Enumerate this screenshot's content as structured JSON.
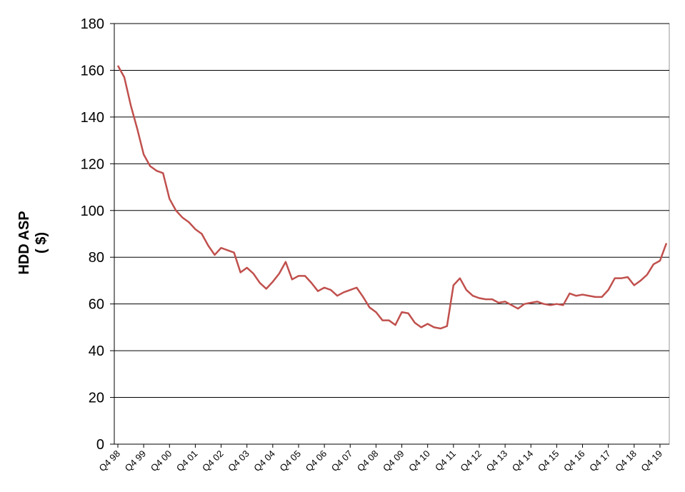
{
  "chart_data": {
    "type": "line",
    "y_label": [
      "HDD ASP",
      "( $)"
    ],
    "categories": [
      "Q4 98",
      null,
      null,
      null,
      "Q4 99",
      null,
      null,
      null,
      "Q4 00",
      null,
      null,
      null,
      "Q4 01",
      null,
      null,
      null,
      "Q4 02",
      null,
      null,
      null,
      "Q4 03",
      null,
      null,
      null,
      "Q4 04",
      null,
      null,
      null,
      "Q4 05",
      null,
      null,
      null,
      "Q4 06",
      null,
      null,
      null,
      "Q4 07",
      null,
      null,
      null,
      "Q4 08",
      null,
      null,
      null,
      "Q4 09",
      null,
      null,
      null,
      "Q4 10",
      null,
      null,
      null,
      "Q4 11",
      null,
      null,
      null,
      "Q4 12",
      null,
      null,
      null,
      "Q4 13",
      null,
      null,
      null,
      "Q4 14",
      null,
      null,
      null,
      "Q4 15",
      null,
      null,
      null,
      "Q4 16",
      null,
      null,
      null,
      "Q4 17",
      null,
      null,
      null,
      "Q4 18",
      null,
      null,
      null,
      "Q4 19",
      null
    ],
    "values": [
      162,
      157,
      145,
      135,
      124,
      119,
      117,
      116,
      105,
      100,
      97,
      95,
      92,
      90,
      85,
      81,
      84,
      83,
      82,
      73.5,
      75.5,
      73,
      69,
      66.5,
      69.5,
      73,
      78,
      70.5,
      72,
      72,
      69,
      65.5,
      67,
      66,
      63.5,
      65,
      66,
      67,
      63,
      58.5,
      56.5,
      53,
      53,
      51,
      56.5,
      56,
      52,
      50,
      51.5,
      50,
      49.5,
      50.5,
      68,
      71,
      66,
      63.5,
      62.5,
      62,
      62,
      60.5,
      61,
      59.5,
      58,
      60,
      60.5,
      61,
      60,
      59.5,
      60,
      59.5,
      64.5,
      63.5,
      64,
      63.5,
      63,
      63,
      66,
      71,
      71,
      71.5,
      68,
      70,
      72.5,
      77,
      78.5,
      86
    ],
    "color": "#c0504d",
    "ylim": [
      0,
      180
    ],
    "yticks": [
      0,
      20,
      40,
      60,
      80,
      100,
      120,
      140,
      160,
      180
    ],
    "grid": true
  }
}
